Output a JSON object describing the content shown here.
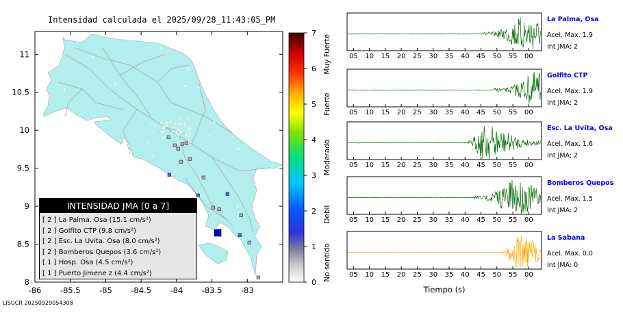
{
  "title": "Intensidad calculada el 2025/09/28_11:43:05_PM",
  "footer_id": "LISUCR 20250929054308",
  "map": {
    "x_ticks": [
      "-86",
      "-85.5",
      "-85",
      "-84.5",
      "-84",
      "-83.5",
      "-83"
    ],
    "y_ticks": [
      "11",
      "10.5",
      "10",
      "9.5",
      "9",
      "8.5",
      "8"
    ],
    "xlim": [
      -86,
      -82.5
    ],
    "ylim": [
      8,
      11.3
    ],
    "land_color": "#b2eeee",
    "epicenter_color": "#0000cc"
  },
  "colorbar": {
    "ticks": [
      "0",
      "1",
      "2",
      "3",
      "4",
      "5",
      "6",
      "7"
    ],
    "bands": [
      "No sentido",
      "Debil",
      "Moderado",
      "Fuerte",
      "Muy Fuerte"
    ],
    "range": [
      0,
      7
    ]
  },
  "legend": {
    "title": "INTENSIDAD JMA [0 a 7]",
    "rows": [
      {
        "text": "[ 2 ]  La Palma. Osa (15.1 cm/s²)"
      },
      {
        "text": "[ 2 ]  Golfito CTP (9.8 cm/s²)"
      },
      {
        "text": "[ 2 ]  Esc. La Uvita. Osa (8.0 cm/s²)"
      },
      {
        "text": "[ 2 ]  Bomberos Quepos (3.6 cm/s²)"
      },
      {
        "text": "[ 1 ]  Hosp. Osa (4.5 cm/s²)"
      },
      {
        "text": "[ 1 ]  Puerto Jimene z (4.4 cm/s²)"
      }
    ]
  },
  "traces": {
    "x_ticks": [
      "05",
      "10",
      "15",
      "20",
      "25",
      "30",
      "35",
      "40",
      "45",
      "50",
      "55",
      "00"
    ],
    "xlabel": "Tiempo (s)",
    "stations": [
      {
        "name": "La Palma, Osa",
        "accel": "Acel. Max. 1.9",
        "jma": "Int JMA: 2",
        "color": "#006600",
        "onset": 46,
        "peak": 58
      },
      {
        "name": "Golfito CTP",
        "accel": "Acel. Max. 1.9",
        "jma": "Int JMA: 2",
        "color": "#006600",
        "onset": 49,
        "peak": 62
      },
      {
        "name": "Esc. La Uvita, Osa",
        "accel": "Acel. Max. 1.6",
        "jma": "Int JMA: 2",
        "color": "#006600",
        "onset": 41,
        "peak": 46
      },
      {
        "name": "Bomberos Quepos",
        "accel": "Acel. Max. 1.5",
        "jma": "Int JMA: 2",
        "color": "#006600",
        "onset": 43,
        "peak": 55
      },
      {
        "name": "La Sabana",
        "accel": "Acel. Max. 0.0",
        "jma": "Int JMA: 0",
        "color": "#ffaa00",
        "onset": 52,
        "peak": 56
      }
    ]
  },
  "chart_data": {
    "type": "scatter",
    "title": "Intensidad calculada el 2025/09/28_11:43:05_PM",
    "xlim": [
      -86,
      -82.5
    ],
    "ylim": [
      8,
      11.3
    ],
    "stations": [
      {
        "name": "La Palma. Osa",
        "jma": 2,
        "pga_cm_s2": 15.1
      },
      {
        "name": "Golfito CTP",
        "jma": 2,
        "pga_cm_s2": 9.8
      },
      {
        "name": "Esc. La Uvita. Osa",
        "jma": 2,
        "pga_cm_s2": 8.0
      },
      {
        "name": "Bomberos Quepos",
        "jma": 2,
        "pga_cm_s2": 3.6
      },
      {
        "name": "Hosp. Osa",
        "jma": 1,
        "pga_cm_s2": 4.5
      },
      {
        "name": "Puerto Jimene z",
        "jma": 1,
        "pga_cm_s2": 4.4
      }
    ],
    "epicenter": {
      "lon": -83.45,
      "lat": 8.65
    },
    "traces": [
      {
        "name": "La Palma, Osa",
        "max_accel": 1.9,
        "jma": 2
      },
      {
        "name": "Golfito CTP",
        "max_accel": 1.9,
        "jma": 2
      },
      {
        "name": "Esc. La Uvita, Osa",
        "max_accel": 1.6,
        "jma": 2
      },
      {
        "name": "Bomberos Quepos",
        "max_accel": 1.5,
        "jma": 2
      },
      {
        "name": "La Sabana",
        "max_accel": 0.0,
        "jma": 0
      }
    ]
  }
}
